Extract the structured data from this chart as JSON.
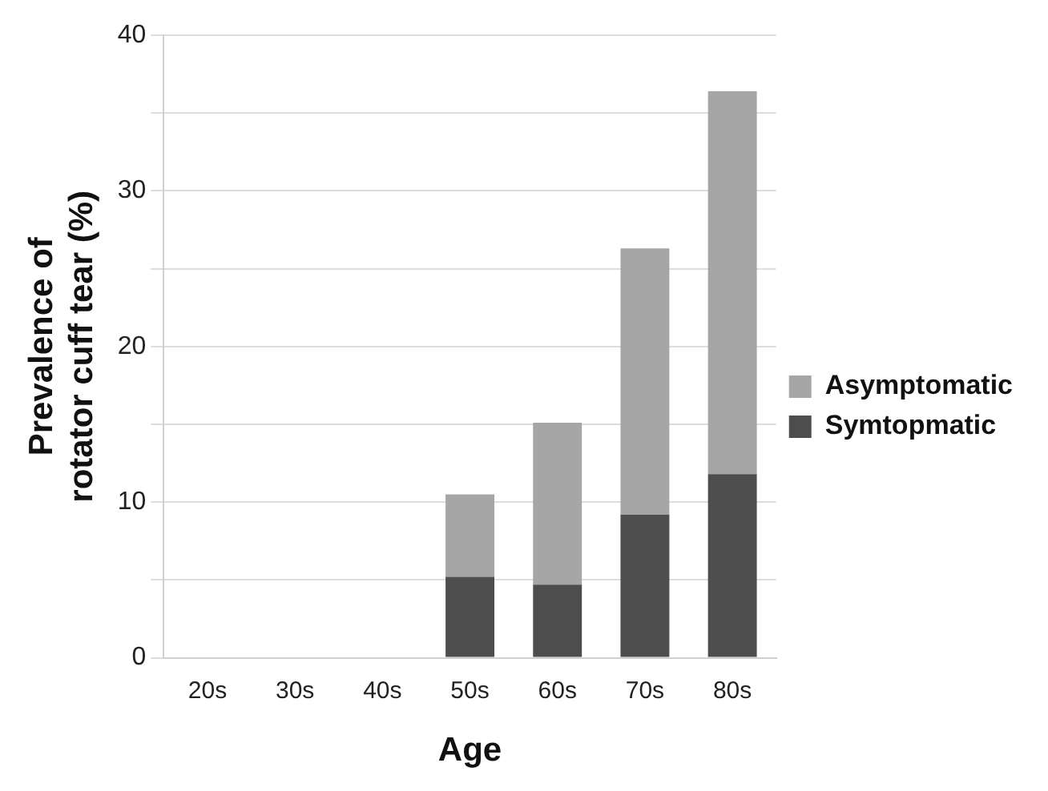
{
  "chart_data": {
    "type": "bar",
    "stacked": true,
    "xlabel": "Age",
    "ylabel": "Prevalence of\nrotator cuff tear (%)",
    "categories": [
      "20s",
      "30s",
      "40s",
      "50s",
      "60s",
      "70s",
      "80s"
    ],
    "series": [
      {
        "name": "Symtopmatic",
        "color": "#4d4d4d",
        "values": [
          0,
          0,
          0,
          5.2,
          4.7,
          9.2,
          11.8
        ]
      },
      {
        "name": "Asymptomatic",
        "color": "#a6a6a6",
        "values": [
          0,
          0,
          0,
          5.3,
          10.4,
          17.1,
          24.6
        ]
      }
    ],
    "ylim": [
      0,
      40
    ],
    "yticks": [
      0,
      {
        "value": 5,
        "label": null
      },
      10,
      {
        "value": 15,
        "label": null
      },
      20,
      {
        "value": 25,
        "label": null
      },
      30,
      {
        "value": 35,
        "label": null
      },
      40
    ],
    "grid": "y",
    "legend": "right"
  }
}
